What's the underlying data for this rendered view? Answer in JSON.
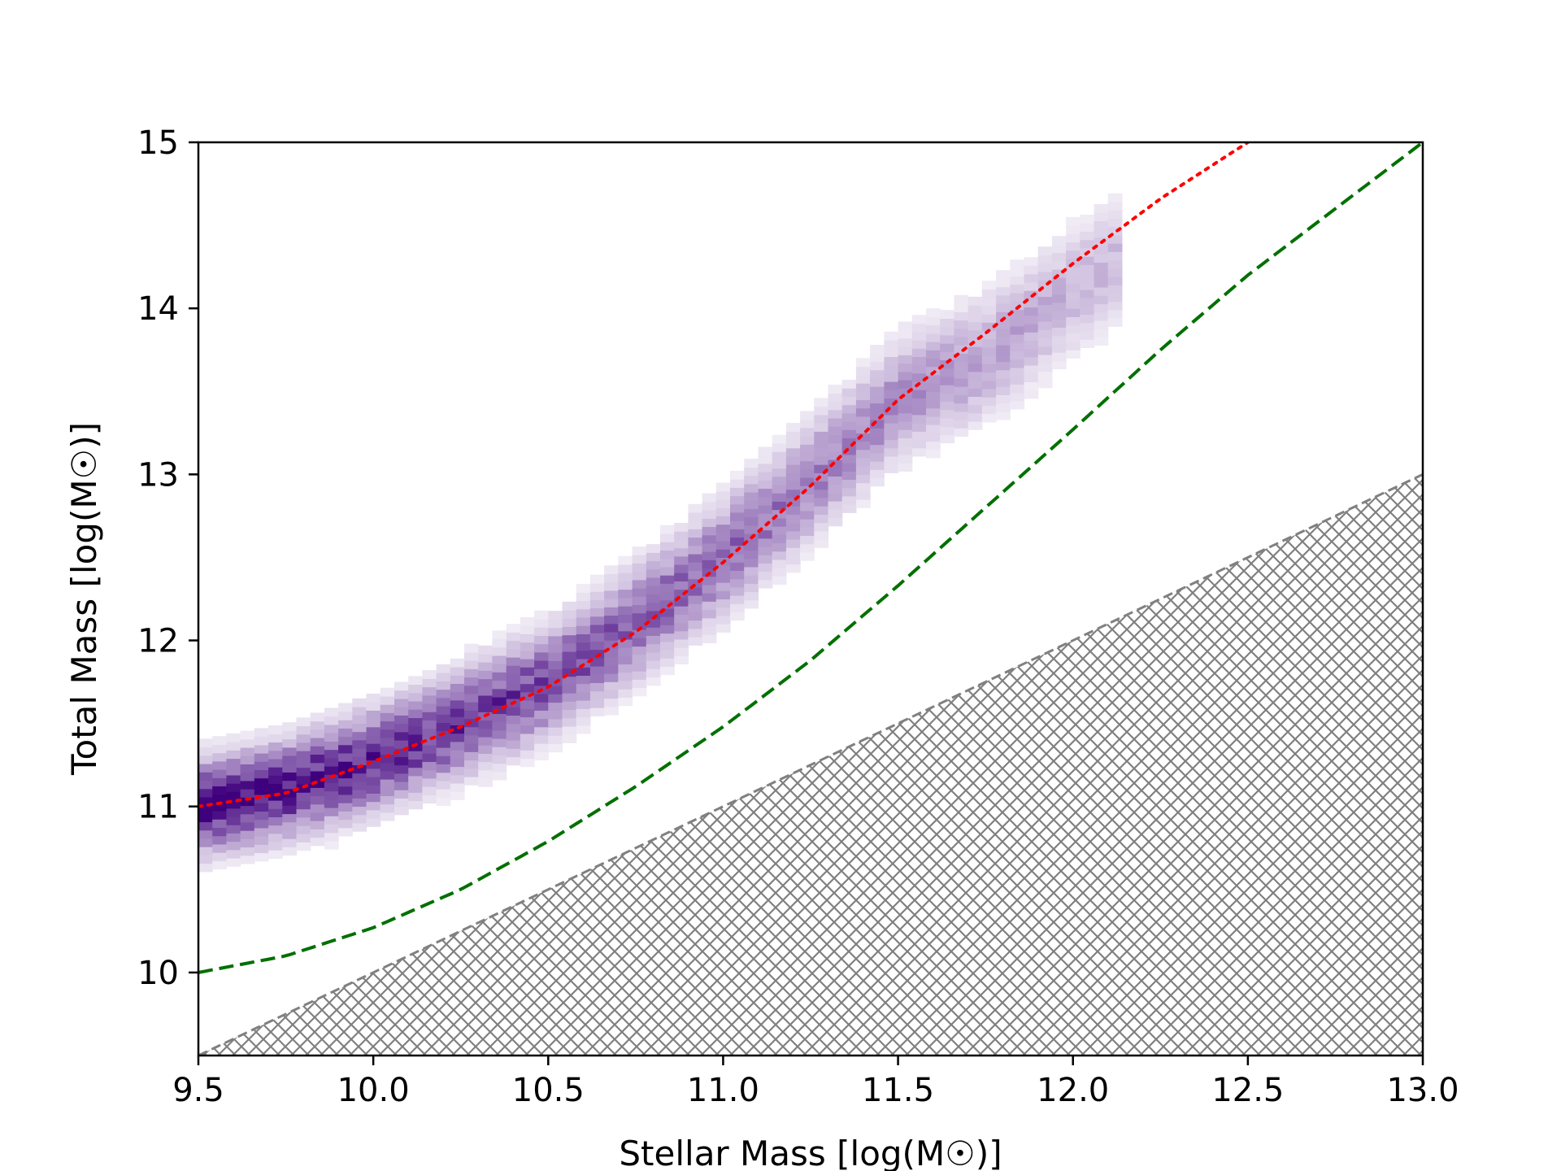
{
  "chart_data": {
    "type": "heatmap",
    "xlabel": "Stellar Mass [log(M☉)]",
    "ylabel": "Total Mass [log(M☉)]",
    "xlim": [
      9.5,
      13.0
    ],
    "ylim": [
      9.5,
      15.0
    ],
    "xticks": [
      "9.5",
      "10.0",
      "10.5",
      "11.0",
      "11.5",
      "12.0",
      "12.5",
      "13.0"
    ],
    "yticks": [
      "10",
      "11",
      "12",
      "13",
      "14",
      "15"
    ],
    "grid": false,
    "colors": {
      "density_colormap": "Purples",
      "ridge_curve": "#ff0000",
      "dashed_curve": "#007000",
      "excluded_region": "#808080"
    },
    "density_ridge": {
      "x": [
        9.5,
        9.75,
        10.0,
        10.25,
        10.5,
        10.75,
        11.0,
        11.25,
        11.5,
        11.75,
        12.0,
        12.25,
        12.5
      ],
      "y": [
        11.0,
        11.1,
        11.28,
        11.5,
        11.75,
        12.1,
        12.5,
        12.95,
        13.45,
        13.7,
        14.1,
        14.5,
        14.95
      ],
      "spread": 0.17,
      "x_extent": [
        9.5,
        12.1
      ]
    },
    "series": [
      {
        "style": "dotted",
        "color": "#ff0000",
        "x": [
          9.5,
          9.75,
          10.0,
          10.25,
          10.5,
          10.75,
          11.0,
          11.25,
          11.5,
          11.75,
          12.0,
          12.25,
          12.5
        ],
        "y": [
          11.0,
          11.08,
          11.27,
          11.48,
          11.72,
          12.05,
          12.47,
          12.93,
          13.45,
          13.85,
          14.27,
          14.66,
          15.0
        ]
      },
      {
        "style": "dashed",
        "color": "#007000",
        "x": [
          9.5,
          9.75,
          10.0,
          10.25,
          10.5,
          10.75,
          11.0,
          11.25,
          11.5,
          11.75,
          12.0,
          12.25,
          12.5,
          12.75,
          13.0
        ],
        "y": [
          10.0,
          10.1,
          10.27,
          10.5,
          10.79,
          11.12,
          11.48,
          11.88,
          12.33,
          12.8,
          13.27,
          13.75,
          14.2,
          14.6,
          15.0
        ]
      }
    ],
    "excluded_region": {
      "boundary": {
        "x": [
          9.5,
          13.0
        ],
        "y": [
          9.5,
          13.0
        ]
      },
      "fill": "crosshatch",
      "color": "#808080"
    }
  }
}
